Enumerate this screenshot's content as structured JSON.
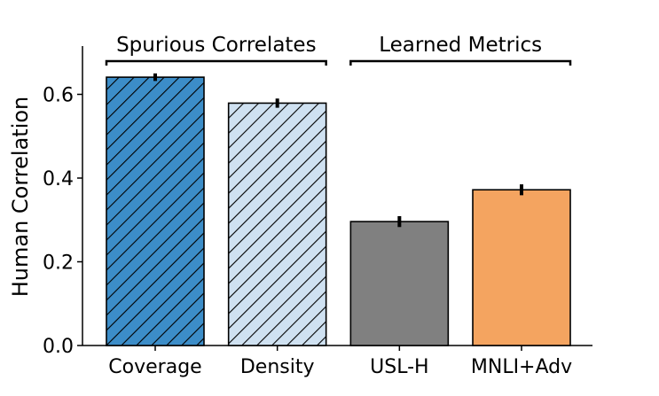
{
  "chart_data": {
    "type": "bar",
    "ylabel": "Human Correlation",
    "xlabel": "",
    "ylim": [
      0.0,
      0.7
    ],
    "yticks": [
      "0.0",
      "0.2",
      "0.4",
      "0.6"
    ],
    "categories": [
      "Coverage",
      "Density",
      "USL-H",
      "MNLI+Adv"
    ],
    "values": [
      0.641,
      0.579,
      0.296,
      0.372
    ],
    "errors": [
      0.009,
      0.011,
      0.013,
      0.013
    ],
    "bar_colors": [
      "#3c8dc8",
      "#cfe1f1",
      "#808080",
      "#f4a460"
    ],
    "hatched": [
      true,
      true,
      false,
      false
    ],
    "groups": [
      {
        "label": "Spurious Correlates",
        "start": 0,
        "end": 1
      },
      {
        "label": "Learned Metrics",
        "start": 2,
        "end": 3
      }
    ],
    "grid": false
  }
}
